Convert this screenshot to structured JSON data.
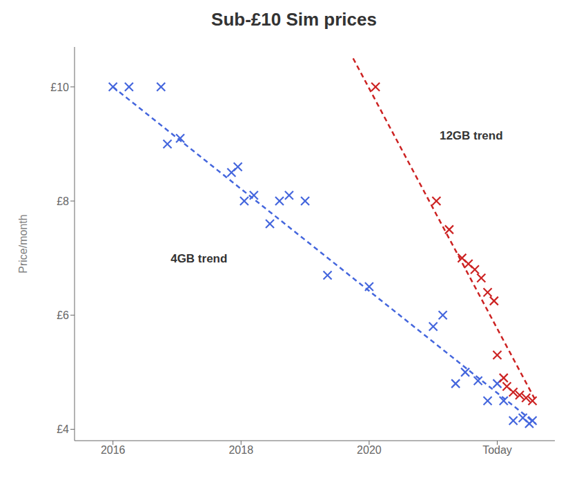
{
  "chart_data": {
    "type": "scatter",
    "title": "Sub-£10 Sim prices",
    "ylabel": "Price/month",
    "xlim": [
      2015.4,
      2022.9
    ],
    "xticks": [
      2016,
      2018,
      2020,
      {
        "value": 2022,
        "label": "Today"
      }
    ],
    "ylim": [
      3.8,
      10.7
    ],
    "yticks": [
      {
        "value": 4,
        "label": "£4"
      },
      {
        "value": 6,
        "label": "£6"
      },
      {
        "value": 8,
        "label": "£8"
      },
      {
        "value": 10,
        "label": "£10"
      }
    ],
    "grid": false,
    "series": [
      {
        "type": "scatter",
        "color": "#4466dd",
        "marker": "x",
        "x": [
          2016.0,
          2016.25,
          2016.75,
          2016.85,
          2017.05,
          2017.85,
          2017.95,
          2018.05,
          2018.2,
          2018.45,
          2018.6,
          2018.75,
          2019.0,
          2019.35,
          2020.0,
          2021.0,
          2021.15,
          2021.35,
          2021.5,
          2021.7,
          2021.85,
          2022.0,
          2022.1,
          2022.25,
          2022.4,
          2022.5,
          2022.55
        ],
        "values": [
          10.0,
          10.0,
          10.0,
          9.0,
          9.1,
          8.5,
          8.6,
          8.0,
          8.1,
          7.6,
          8.0,
          8.1,
          8.0,
          6.7,
          6.5,
          5.8,
          6.0,
          4.8,
          5.0,
          4.85,
          4.5,
          4.8,
          4.5,
          4.15,
          4.2,
          4.1,
          4.15
        ]
      },
      {
        "type": "scatter",
        "color": "#cc2222",
        "marker": "x",
        "x": [
          2020.1,
          2021.05,
          2021.25,
          2021.45,
          2021.55,
          2021.65,
          2021.75,
          2021.85,
          2021.95,
          2022.0,
          2022.1,
          2022.15,
          2022.25,
          2022.35,
          2022.45,
          2022.55
        ],
        "values": [
          10.0,
          8.0,
          7.5,
          7.0,
          6.9,
          6.8,
          6.65,
          6.4,
          6.25,
          5.3,
          4.9,
          4.75,
          4.65,
          4.6,
          4.55,
          4.5
        ]
      },
      {
        "type": "line",
        "color": "#4466dd",
        "line_style": "dashed",
        "x": [
          2016.0,
          2022.6
        ],
        "values": [
          10.0,
          4.1
        ]
      },
      {
        "type": "line",
        "color": "#cc2222",
        "line_style": "dashed",
        "x": [
          2019.75,
          2022.6
        ],
        "values": [
          10.5,
          4.5
        ]
      }
    ],
    "annotations": [
      {
        "text": "4GB trend",
        "x": 2016.9,
        "y": 7.0
      },
      {
        "text": "12GB trend",
        "x": 2021.1,
        "y": 9.15
      }
    ]
  }
}
